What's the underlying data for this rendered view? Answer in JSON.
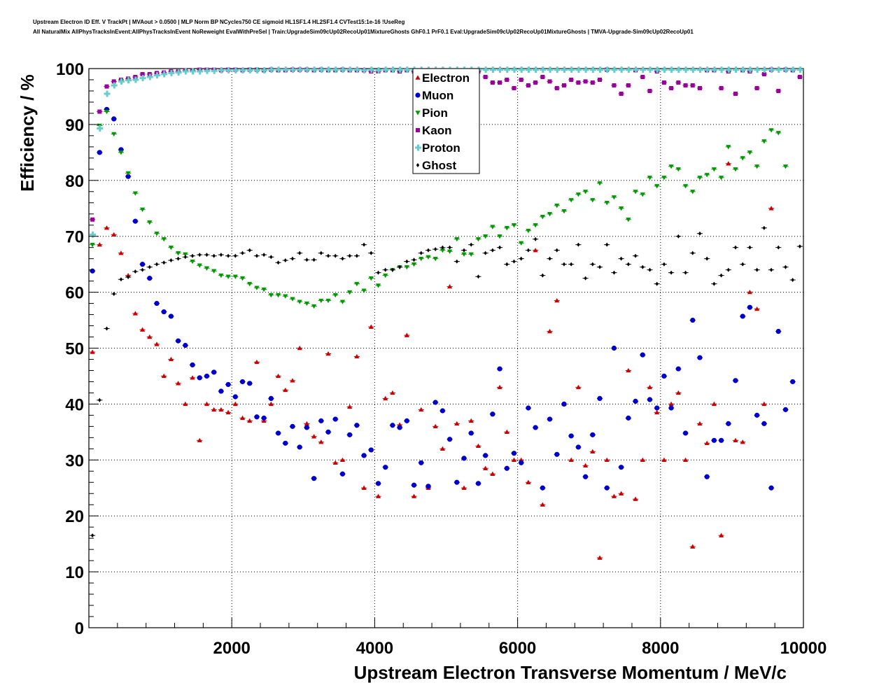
{
  "header": {
    "line1": "Upstream Electron ID Eff. V TrackPt | MVAout > 0.0500 | MLP Norm BP NCycles750 CE sigmoid HL1SF1.4 HL2SF1.4 CVTest15:1e-16 !UseReg",
    "line2": "All NaturalMix AllPhysTracksInEvent:AllPhysTracksInEvent NoReweight EvalWithPreSel | Train:UpgradeSim09cUp02RecoUp01MixtureGhosts GhF0.1 PrF0.1 Eval:UpgradeSim09cUp02RecoUp01MixtureGhosts | TMVA-Upgrade-Sim09cUp02RecoUp01"
  },
  "chart_data": {
    "type": "scatter",
    "xlabel": "Upstream Electron Transverse Momentum / MeV/c",
    "ylabel": "Efficiency / %",
    "xlim": [
      0,
      10000
    ],
    "ylim": [
      0,
      100
    ],
    "xticks": [
      2000,
      4000,
      6000,
      8000,
      10000
    ],
    "xtick_labels": [
      "2000",
      "4000",
      "6000",
      "8000",
      "10000"
    ],
    "yticks": [
      0,
      10,
      20,
      30,
      40,
      50,
      60,
      70,
      80,
      90,
      100
    ],
    "ytick_labels": [
      "0",
      "10",
      "20",
      "30",
      "40",
      "50",
      "60",
      "70",
      "80",
      "90",
      "100"
    ],
    "grid": true,
    "legend_position": "top-center",
    "bin_width": 100,
    "x": [
      50,
      150,
      250,
      350,
      450,
      550,
      650,
      750,
      850,
      950,
      1050,
      1150,
      1250,
      1350,
      1450,
      1550,
      1650,
      1750,
      1850,
      1950,
      2050,
      2150,
      2250,
      2350,
      2450,
      2550,
      2650,
      2750,
      2850,
      2950,
      3050,
      3150,
      3250,
      3350,
      3450,
      3550,
      3650,
      3750,
      3850,
      3950,
      4050,
      4150,
      4250,
      4350,
      4450,
      4550,
      4650,
      4750,
      4850,
      4950,
      5050,
      5150,
      5250,
      5350,
      5450,
      5550,
      5650,
      5750,
      5850,
      5950,
      6050,
      6150,
      6250,
      6350,
      6450,
      6550,
      6650,
      6750,
      6850,
      6950,
      7050,
      7150,
      7250,
      7350,
      7450,
      7550,
      7650,
      7750,
      7850,
      7950,
      8050,
      8150,
      8250,
      8350,
      8450,
      8550,
      8650,
      8750,
      8850,
      8950,
      9050,
      9150,
      9250,
      9350,
      9450,
      9550,
      9650,
      9750,
      9850,
      9950
    ],
    "series": [
      {
        "name": "Electron",
        "color": "#cc0000",
        "marker": "triangle-up",
        "values": [
          49.3,
          68.5,
          71.5,
          70.3,
          67,
          63,
          56.2,
          53.3,
          52,
          50.7,
          45,
          48,
          43.7,
          40,
          44.7,
          33.5,
          40,
          39,
          39,
          38.5,
          40,
          37.5,
          37,
          47.5,
          37,
          40,
          45,
          42.5,
          44.2,
          50,
          36.5,
          34.2,
          33.2,
          49,
          29.5,
          30,
          39.5,
          48.5,
          25,
          53.8,
          23.5,
          41,
          42,
          36.3,
          52.3,
          23.5,
          39,
          25,
          36,
          32,
          61,
          36.5,
          25,
          37,
          32.5,
          28.5,
          27.5,
          43,
          35,
          30,
          30,
          26,
          67.5,
          22,
          53,
          58.5,
          40,
          30,
          43,
          29,
          31.5,
          12.5,
          30,
          23.5,
          24,
          46,
          23,
          30,
          43,
          38.5,
          30,
          40,
          42,
          30,
          14.5,
          36.5,
          33,
          40,
          16.5,
          83,
          33.5,
          33.2,
          60,
          57,
          40,
          75
        ]
      },
      {
        "name": "Muon",
        "color": "#0000cc",
        "marker": "circle",
        "values": [
          63.8,
          85,
          92.7,
          91,
          85.5,
          80.7,
          72.7,
          65,
          62.5,
          58,
          56.5,
          55.7,
          51.3,
          50.5,
          47,
          44.7,
          45,
          45.7,
          42.3,
          43.5,
          41.3,
          44,
          43.7,
          37.7,
          37.5,
          41,
          34.8,
          33,
          36,
          32.3,
          35.8,
          26.7,
          37,
          35,
          37.3,
          27.5,
          34.5,
          36.2,
          30.8,
          31.8,
          25.8,
          28.7,
          36.2,
          35.8,
          37,
          25.5,
          29.5,
          25.3,
          40.3,
          38.8,
          33.7,
          26,
          30.3,
          34.8,
          25.8,
          30.8,
          38.2,
          46.3,
          28.5,
          31.2,
          29.5,
          39.3,
          35.8,
          25,
          37.3,
          31,
          40,
          34.3,
          32.3,
          27,
          34.5,
          41,
          25,
          50,
          28.7,
          37.5,
          40.5,
          48.8,
          40.8,
          39.3,
          45,
          39.3,
          46.3,
          34.8,
          55,
          48.3,
          27,
          33.5,
          33.5,
          36.5,
          44.2,
          55.7,
          57.3,
          38,
          36.5,
          25,
          53,
          39,
          44
        ]
      },
      {
        "name": "Pion",
        "color": "#009900",
        "marker": "triangle-down",
        "values": [
          68.5,
          89.8,
          92.3,
          88.3,
          85,
          81.3,
          77.7,
          74.8,
          72.5,
          70.5,
          69.5,
          68,
          67,
          66.8,
          65.5,
          64.8,
          64.3,
          63.8,
          63,
          62.8,
          62.8,
          62.5,
          61.5,
          60.8,
          60.5,
          59.5,
          59.5,
          59.3,
          58.8,
          58.3,
          58,
          57.5,
          58.5,
          58.5,
          59.5,
          58.3,
          60,
          61.5,
          60.3,
          62.5,
          61.2,
          63,
          64,
          64.5,
          64.5,
          65,
          66,
          66.3,
          66,
          67.5,
          67.3,
          69.5,
          66.8,
          66.8,
          69.5,
          70,
          71.7,
          70,
          71.5,
          72,
          68.8,
          71,
          72,
          73.5,
          74,
          75.5,
          74.5,
          76.5,
          77.5,
          78,
          76.5,
          79.5,
          76,
          77,
          75,
          73,
          78,
          77.5,
          80.5,
          79,
          80.5,
          82.5,
          82,
          79,
          78,
          80.5,
          81,
          82,
          80.5,
          86,
          82,
          84,
          85,
          82.5,
          87,
          89,
          88.5,
          82.5
        ]
      },
      {
        "name": "Kaon",
        "color": "#990099",
        "marker": "square",
        "values": [
          73,
          92.3,
          96.8,
          97.7,
          98,
          98.2,
          98.5,
          99,
          99,
          99.2,
          99.3,
          99.5,
          99.5,
          99.7,
          99.7,
          99.8,
          99.8,
          99.8,
          99.7,
          99.8,
          99.8,
          99.7,
          99.8,
          99.8,
          99.7,
          99.8,
          99.7,
          99.7,
          99.8,
          99.8,
          99.8,
          99.7,
          99.8,
          99.7,
          99.7,
          99.8,
          99.7,
          99.7,
          99.7,
          99.5,
          99.5,
          99.7,
          99.7,
          99.5,
          99.7,
          99.5,
          99.5,
          99.7,
          99.5,
          99.7,
          98.5,
          99.5,
          99.5,
          99.7,
          99.5,
          98.5,
          97.5,
          97.5,
          98,
          96.5,
          98,
          97,
          97.5,
          98.5,
          97.7,
          96.5,
          97,
          98,
          97.5,
          97.7,
          97.5,
          98,
          99.8,
          97,
          95.5,
          97,
          99.7,
          98.5,
          96,
          99.5,
          97.5,
          96.5,
          97.5,
          97,
          97,
          96.5,
          99.7,
          99.7,
          96.5,
          99.5,
          95.5,
          99.7,
          99.5,
          96.5,
          99,
          99.8,
          96,
          99.8,
          99.7,
          98.5
        ]
      },
      {
        "name": "Proton",
        "color": "#66cccc",
        "marker": "cross",
        "values": [
          70.3,
          89.3,
          95.5,
          97,
          97.7,
          97.9,
          98,
          98.3,
          98.5,
          98.8,
          99,
          99.2,
          99.3,
          99.5,
          99.5,
          99.5,
          99.6,
          99.6,
          99.7,
          99.7,
          99.7,
          99.7,
          99.7,
          99.7,
          99.7,
          99.8,
          99.8,
          99.8,
          99.8,
          99.8,
          99.8,
          99.8,
          99.8,
          99.8,
          99.8,
          99.8,
          99.8,
          99.8,
          99.7,
          99.8,
          99.7,
          99.8,
          99.8,
          99.8,
          99.8,
          99.8,
          99.8,
          99.8,
          99.8,
          99.8,
          99.8,
          99.8,
          99.8,
          99.8,
          99.8,
          99.8,
          99.8,
          99.8,
          99.8,
          99.8,
          99.8,
          99.8,
          99.8,
          99.8,
          99.8,
          99.8,
          99.8,
          99.8,
          99.8,
          99.8,
          99.8,
          99.8,
          99.8,
          99.8,
          99.8,
          99.8,
          99.8,
          99.8,
          99.8,
          99.8,
          99.8,
          99.8,
          99.8,
          99.8,
          99.8,
          99.8,
          99.8,
          99.8,
          99.8,
          99.8,
          99.8,
          99.8,
          99.8,
          99.8,
          99.8,
          99.8,
          99.8,
          99.8,
          99.8,
          99.8
        ]
      },
      {
        "name": "Ghost",
        "color": "#000000",
        "marker": "diamond",
        "values": [
          16.5,
          40.7,
          53.5,
          59.7,
          62.3,
          62.7,
          63.7,
          64,
          64.5,
          65,
          65.3,
          65.7,
          66,
          66.3,
          66.5,
          66.7,
          66.7,
          66.5,
          66.7,
          66.5,
          66.5,
          67,
          67.5,
          66.5,
          66.7,
          66.3,
          65.3,
          65.7,
          66,
          67,
          65.8,
          65.8,
          67,
          66.5,
          66.5,
          66,
          66.5,
          66.5,
          68.5,
          67,
          63.5,
          64,
          64,
          64.5,
          65.5,
          65.8,
          67,
          67.5,
          67.7,
          68,
          68,
          65.5,
          67.5,
          68.5,
          62.8,
          67,
          67.5,
          68,
          65,
          65.5,
          66,
          67.5,
          69.5,
          63,
          66,
          67.5,
          65,
          65,
          68.5,
          62.5,
          65,
          64.5,
          68.5,
          63.5,
          66,
          65,
          66.5,
          64.5,
          64,
          61.5,
          65,
          63.5,
          70,
          63.5,
          67,
          70.5,
          66,
          61.5,
          63,
          64,
          68,
          65,
          68,
          64,
          71.5,
          64,
          68,
          64.5,
          62.2,
          68.2
        ]
      }
    ]
  }
}
